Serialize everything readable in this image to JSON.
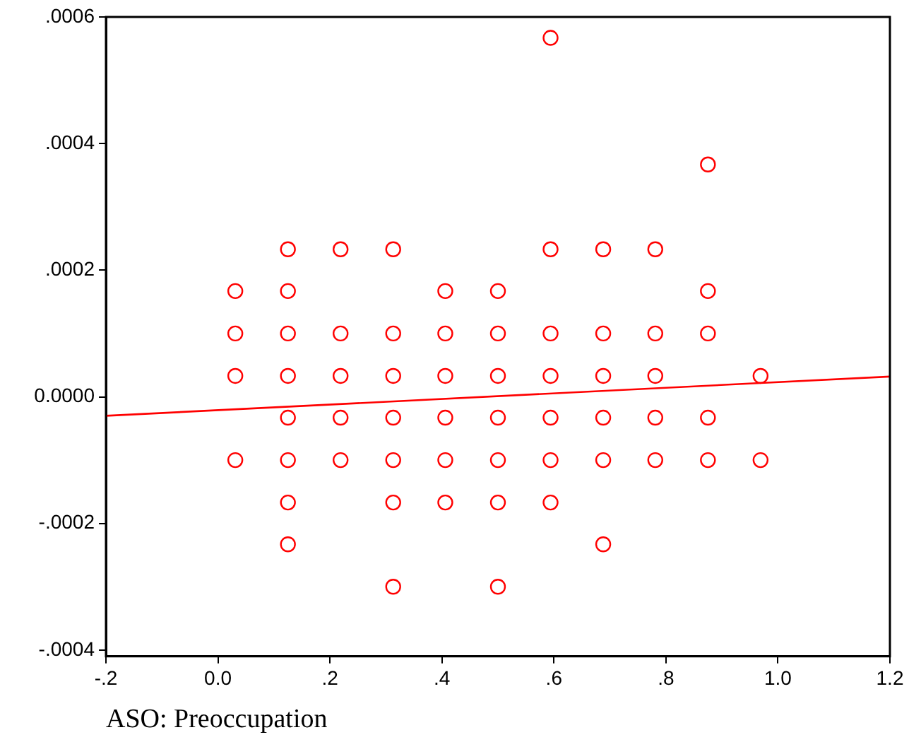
{
  "chart_data": {
    "type": "scatter",
    "xlabel": "ASO: Preoccupation",
    "grid": false,
    "legend": false,
    "xlim": [
      -0.2,
      1.2
    ],
    "xticks": [
      {
        "value": -0.2,
        "label": "-.2"
      },
      {
        "value": 0,
        "label": "0.0"
      },
      {
        "value": 0.2,
        "label": ".2"
      },
      {
        "value": 0.4,
        "label": ".4"
      },
      {
        "value": 0.6,
        "label": ".6"
      },
      {
        "value": 0.8,
        "label": ".8"
      },
      {
        "value": 1,
        "label": "1.0"
      },
      {
        "value": 1.2,
        "label": "1.2"
      }
    ],
    "ylim": [
      -0.00041,
      0.0006
    ],
    "yticks": [
      {
        "value": -0.0004,
        "label": "-.0004"
      },
      {
        "value": -0.0002,
        "label": "-.0002"
      },
      {
        "value": 0,
        "label": "0.0000"
      },
      {
        "value": 0.0002,
        "label": ".0002"
      },
      {
        "value": 0.0004,
        "label": ".0004"
      },
      {
        "value": 0.0006,
        "label": ".0006"
      }
    ],
    "series": [
      {
        "marker": "circle",
        "color": "#ff0000",
        "x": [
          0.125,
          0.219,
          0.313,
          0.594,
          0.688,
          0.781,
          0.031,
          0.125,
          0.406,
          0.5,
          0.875,
          0.031,
          0.125,
          0.219,
          0.313,
          0.406,
          0.5,
          0.594,
          0.688,
          0.781,
          0.875,
          0.031,
          0.125,
          0.219,
          0.313,
          0.406,
          0.5,
          0.594,
          0.688,
          0.781,
          0.969,
          0.125,
          0.219,
          0.313,
          0.406,
          0.5,
          0.594,
          0.688,
          0.781,
          0.875,
          0.031,
          0.125,
          0.219,
          0.313,
          0.406,
          0.5,
          0.594,
          0.688,
          0.781,
          0.875,
          0.969,
          0.125,
          0.313,
          0.406,
          0.5,
          0.594,
          0.125,
          0.688,
          0.313,
          0.5,
          0.594,
          0.875
        ],
        "values": [
          0.000233,
          0.000233,
          0.000233,
          0.000233,
          0.000233,
          0.000233,
          0.000167,
          0.000167,
          0.000167,
          0.000167,
          0.000167,
          0.0001,
          0.0001,
          0.0001,
          0.0001,
          0.0001,
          0.0001,
          0.0001,
          0.0001,
          0.0001,
          0.0001,
          3.3e-05,
          3.3e-05,
          3.3e-05,
          3.3e-05,
          3.3e-05,
          3.3e-05,
          3.3e-05,
          3.3e-05,
          3.3e-05,
          3.3e-05,
          -3.3e-05,
          -3.3e-05,
          -3.3e-05,
          -3.3e-05,
          -3.3e-05,
          -3.3e-05,
          -3.3e-05,
          -3.3e-05,
          -3.3e-05,
          -0.0001,
          -0.0001,
          -0.0001,
          -0.0001,
          -0.0001,
          -0.0001,
          -0.0001,
          -0.0001,
          -0.0001,
          -0.0001,
          -0.0001,
          -0.000167,
          -0.000167,
          -0.000167,
          -0.000167,
          -0.000167,
          -0.000233,
          -0.000233,
          -0.0003,
          -0.0003,
          0.000567,
          0.000367
        ]
      },
      {
        "type": "line",
        "color": "#ff0000",
        "x": [
          -0.2,
          1.2
        ],
        "values": [
          -3e-05,
          3.2e-05
        ]
      }
    ]
  }
}
